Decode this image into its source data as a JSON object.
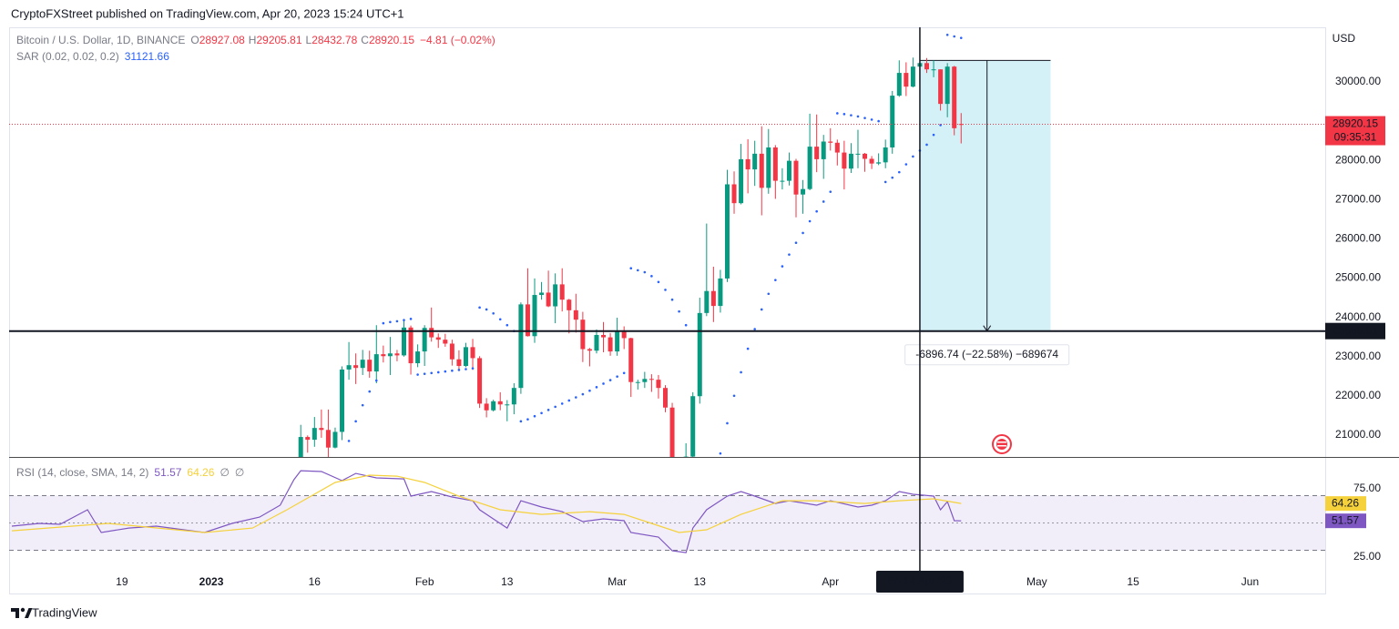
{
  "header": {
    "publisher": "CryptoFXStreet published on TradingView.com, Apr 20, 2023 15:24 UTC+1"
  },
  "footer": {
    "brand": "TradingView"
  },
  "chart_data": [
    {
      "type": "candlestick",
      "title": "Bitcoin / U.S. Dollar, 1D, BINANCE",
      "legend_keys": [
        "O",
        "H",
        "L",
        "C"
      ],
      "change": "−4.81 (−0.02%)",
      "currency": "USD",
      "up_color": "#089981",
      "down_color": "#f23645",
      "x": [
        "2023-01-13",
        "2023-01-14",
        "2023-01-15",
        "2023-01-16",
        "2023-01-17",
        "2023-01-18",
        "2023-01-19",
        "2023-01-20",
        "2023-01-21",
        "2023-01-22",
        "2023-01-23",
        "2023-01-24",
        "2023-01-25",
        "2023-01-26",
        "2023-01-27",
        "2023-01-28",
        "2023-01-29",
        "2023-01-30",
        "2023-01-31",
        "2023-02-01",
        "2023-02-02",
        "2023-02-03",
        "2023-02-04",
        "2023-02-05",
        "2023-02-06",
        "2023-02-07",
        "2023-02-08",
        "2023-02-09",
        "2023-02-10",
        "2023-02-11",
        "2023-02-12",
        "2023-02-13",
        "2023-02-14",
        "2023-02-15",
        "2023-02-16",
        "2023-02-17",
        "2023-02-18",
        "2023-02-19",
        "2023-02-20",
        "2023-02-21",
        "2023-02-22",
        "2023-02-23",
        "2023-02-24",
        "2023-02-25",
        "2023-02-26",
        "2023-02-27",
        "2023-02-28",
        "2023-03-01",
        "2023-03-02",
        "2023-03-03",
        "2023-03-04",
        "2023-03-05",
        "2023-03-06",
        "2023-03-07",
        "2023-03-08",
        "2023-03-09",
        "2023-03-10",
        "2023-03-11",
        "2023-03-12",
        "2023-03-13",
        "2023-03-14",
        "2023-03-15",
        "2023-03-16",
        "2023-03-17",
        "2023-03-18",
        "2023-03-19",
        "2023-03-20",
        "2023-03-21",
        "2023-03-22",
        "2023-03-23",
        "2023-03-24",
        "2023-03-25",
        "2023-03-26",
        "2023-03-27",
        "2023-03-28",
        "2023-03-29",
        "2023-03-30",
        "2023-03-31",
        "2023-04-01",
        "2023-04-02",
        "2023-04-03",
        "2023-04-04",
        "2023-04-05",
        "2023-04-06",
        "2023-04-07",
        "2023-04-08",
        "2023-04-09",
        "2023-04-10",
        "2023-04-11",
        "2023-04-12",
        "2023-04-13",
        "2023-04-14",
        "2023-04-15",
        "2023-04-16",
        "2023-04-17",
        "2023-04-18",
        "2023-04-19",
        "2023-04-20"
      ],
      "ohlc": [
        [
          18850,
          19970,
          18700,
          19930
        ],
        [
          19930,
          21260,
          19890,
          20950
        ],
        [
          20950,
          20990,
          20550,
          20880
        ],
        [
          20880,
          21460,
          20700,
          21180
        ],
        [
          21180,
          21650,
          20930,
          21130
        ],
        [
          21130,
          21650,
          20410,
          20680
        ],
        [
          20680,
          21190,
          20660,
          21080
        ],
        [
          21080,
          22750,
          20870,
          22670
        ],
        [
          22670,
          23370,
          22410,
          22780
        ],
        [
          22780,
          23080,
          22300,
          22710
        ],
        [
          22710,
          23170,
          22530,
          22920
        ],
        [
          22920,
          23150,
          22460,
          22620
        ],
        [
          22620,
          23800,
          22320,
          23060
        ],
        [
          23060,
          23280,
          22850,
          23010
        ],
        [
          23010,
          23500,
          22530,
          23080
        ],
        [
          23080,
          23170,
          22880,
          23030
        ],
        [
          23030,
          23960,
          23000,
          23740
        ],
        [
          23740,
          23790,
          22540,
          22830
        ],
        [
          22830,
          23310,
          22730,
          23130
        ],
        [
          23130,
          23800,
          22760,
          23730
        ],
        [
          23730,
          24250,
          23380,
          23490
        ],
        [
          23490,
          23590,
          23220,
          23430
        ],
        [
          23430,
          23580,
          23250,
          23330
        ],
        [
          23330,
          23430,
          22770,
          22930
        ],
        [
          22930,
          23160,
          22630,
          22760
        ],
        [
          22760,
          23350,
          22730,
          23240
        ],
        [
          23240,
          23450,
          22660,
          22960
        ],
        [
          22960,
          23010,
          21690,
          21800
        ],
        [
          21800,
          21940,
          21450,
          21630
        ],
        [
          21630,
          21900,
          21600,
          21860
        ],
        [
          21860,
          22090,
          21630,
          21780
        ],
        [
          21780,
          21890,
          21350,
          21780
        ],
        [
          21780,
          22320,
          21530,
          22200
        ],
        [
          22200,
          24380,
          22050,
          24330
        ],
        [
          24330,
          25250,
          23510,
          23520
        ],
        [
          23520,
          24990,
          23350,
          24570
        ],
        [
          24570,
          24900,
          24450,
          24630
        ],
        [
          24630,
          25190,
          24260,
          24280
        ],
        [
          24280,
          25120,
          23850,
          24840
        ],
        [
          24840,
          25250,
          24150,
          24450
        ],
        [
          24450,
          24470,
          23590,
          24180
        ],
        [
          24180,
          24600,
          23610,
          23940
        ],
        [
          23940,
          24140,
          22860,
          23190
        ],
        [
          23190,
          23220,
          22750,
          23150
        ],
        [
          23150,
          23690,
          23080,
          23550
        ],
        [
          23550,
          23880,
          23110,
          23490
        ],
        [
          23490,
          23600,
          23020,
          23130
        ],
        [
          23130,
          23990,
          23020,
          23630
        ],
        [
          23630,
          23770,
          23190,
          23470
        ],
        [
          23470,
          23480,
          21970,
          22350
        ],
        [
          22350,
          22410,
          22160,
          22350
        ],
        [
          22350,
          22610,
          22200,
          22430
        ],
        [
          22430,
          22550,
          22100,
          22410
        ],
        [
          22410,
          22530,
          21930,
          22200
        ],
        [
          22200,
          22270,
          21580,
          21700
        ],
        [
          21700,
          21820,
          19570,
          20360
        ],
        [
          20360,
          20370,
          19550,
          20150
        ],
        [
          20150,
          20790,
          19880,
          20450
        ],
        [
          20450,
          22090,
          20270,
          21990
        ],
        [
          21990,
          24500,
          21800,
          24110
        ],
        [
          24110,
          26390,
          24030,
          24670
        ],
        [
          24670,
          25290,
          23880,
          24290
        ],
        [
          24290,
          25210,
          24120,
          24990
        ],
        [
          24990,
          27760,
          24900,
          27390
        ],
        [
          27390,
          27720,
          26640,
          26910
        ],
        [
          26910,
          28420,
          26880,
          28030
        ],
        [
          28030,
          28540,
          27160,
          27770
        ],
        [
          27770,
          28500,
          27350,
          28170
        ],
        [
          28170,
          28870,
          26600,
          27300
        ],
        [
          27300,
          28800,
          27150,
          28330
        ],
        [
          28330,
          28390,
          27020,
          27480
        ],
        [
          27480,
          27800,
          27260,
          27480
        ],
        [
          27480,
          28200,
          27360,
          27990
        ],
        [
          27990,
          28040,
          26550,
          27130
        ],
        [
          27130,
          27500,
          26640,
          27270
        ],
        [
          27270,
          29190,
          27240,
          28350
        ],
        [
          28350,
          29170,
          27700,
          28030
        ],
        [
          28030,
          28650,
          27530,
          28480
        ],
        [
          28480,
          28820,
          28250,
          28450
        ],
        [
          28450,
          28530,
          27870,
          28200
        ],
        [
          28200,
          28500,
          27260,
          27790
        ],
        [
          27790,
          28440,
          27680,
          28170
        ],
        [
          28170,
          28780,
          27800,
          28170
        ],
        [
          28170,
          28190,
          27710,
          28040
        ],
        [
          28040,
          28110,
          27780,
          27920
        ],
        [
          27920,
          28180,
          27880,
          27950
        ],
        [
          27950,
          28530,
          27800,
          28330
        ],
        [
          28330,
          29770,
          28170,
          29650
        ],
        [
          29650,
          30550,
          29620,
          30230
        ],
        [
          30230,
          30500,
          29640,
          29880
        ],
        [
          29880,
          30620,
          29860,
          30390
        ],
        [
          30390,
          31000,
          29970,
          30480
        ],
        [
          30480,
          30610,
          30230,
          30320
        ],
        [
          30320,
          30550,
          30120,
          30320
        ],
        [
          30320,
          30320,
          29270,
          29440
        ],
        [
          29440,
          30480,
          29100,
          30390
        ],
        [
          30390,
          30410,
          28640,
          28820
        ],
        [
          28927.08,
          29205.81,
          28432.78,
          28920.15
        ]
      ],
      "indicator": {
        "name": "SAR (0.02, 0.02, 0.2)",
        "color": "#2962ff",
        "values": [
          17500,
          17900,
          18400,
          18900,
          19350,
          19750,
          20100,
          20400,
          20850,
          21350,
          21760,
          22110,
          22390,
          23850,
          23880,
          23900,
          23930,
          23960,
          22540,
          22560,
          22580,
          22600,
          22620,
          22640,
          22660,
          22680,
          22700,
          24250,
          24200,
          24100,
          23950,
          23800,
          23650,
          21350,
          21400,
          21480,
          21560,
          21640,
          21720,
          21800,
          21880,
          21960,
          22040,
          22130,
          22220,
          22310,
          22400,
          22490,
          22580,
          25250,
          25200,
          25150,
          25050,
          24900,
          24700,
          24450,
          24150,
          23800,
          19550,
          19620,
          19800,
          20150,
          20530,
          21300,
          22000,
          22600,
          23200,
          23700,
          24200,
          24600,
          24950,
          25300,
          25600,
          25900,
          26150,
          26450,
          26700,
          26950,
          27200,
          29200,
          29180,
          29150,
          29120,
          29080,
          29040,
          29000,
          27450,
          27560,
          27700,
          27900,
          28100,
          28250,
          28400,
          28650,
          28900,
          31200,
          31160,
          31121.66
        ]
      },
      "xlim": [
        "2022-12-03",
        "2023-06-11"
      ],
      "xticks": [
        {
          "value": "2022-12-19",
          "label": "19"
        },
        {
          "value": "2023-01-01",
          "label": "2023"
        },
        {
          "value": "2023-01-16",
          "label": "16"
        },
        {
          "value": "2023-02-01",
          "label": "Feb"
        },
        {
          "value": "2023-02-13",
          "label": "13"
        },
        {
          "value": "2023-03-01",
          "label": "Mar"
        },
        {
          "value": "2023-03-13",
          "label": "13"
        },
        {
          "value": "2023-04-01",
          "label": "Apr"
        },
        {
          "value": "2023-05-01",
          "label": "May"
        },
        {
          "value": "2023-05-15",
          "label": "15"
        },
        {
          "value": "2023-06-01",
          "label": "Jun"
        }
      ],
      "ylim": [
        20441,
        31392
      ],
      "yticks": [
        {
          "value": 21000,
          "label": "21000.00"
        },
        {
          "value": 22000,
          "label": "22000.00"
        },
        {
          "value": 23000,
          "label": "23000.00"
        },
        {
          "value": 24000,
          "label": "24000.00"
        },
        {
          "value": 25000,
          "label": "25000.00"
        },
        {
          "value": 26000,
          "label": "26000.00"
        },
        {
          "value": 27000,
          "label": "27000.00"
        },
        {
          "value": 28000,
          "label": "28000.00"
        },
        {
          "value": 29000,
          "label": "29000.00"
        },
        {
          "value": 30000,
          "label": "30000.00"
        }
      ],
      "last_price_time": "09:35:31",
      "hline": 23650.01,
      "measure": {
        "from": 30546.75,
        "to": 23650.01,
        "x_start": "2023-04-14",
        "x_end": "2023-05-03",
        "label": "-6896.74 (−22.58%) −689674"
      },
      "crosshair": {
        "x": "2023-04-14",
        "label": "Fri 14 Apr '23"
      }
    },
    {
      "type": "line",
      "title": "RSI (14, close, SMA, 14, 2)",
      "legend_extra": [
        "∅",
        "∅"
      ],
      "series": [
        {
          "color": "#7e57c2",
          "x": [
            "2022-12-03",
            "2022-12-07",
            "2022-12-10",
            "2022-12-14",
            "2022-12-16",
            "2022-12-20",
            "2022-12-24",
            "2022-12-28",
            "2022-12-31",
            "2023-01-04",
            "2023-01-08",
            "2023-01-11",
            "2023-01-13",
            "2023-01-14",
            "2023-01-17",
            "2023-01-20",
            "2023-01-22",
            "2023-01-25",
            "2023-01-29",
            "2023-01-30",
            "2023-02-02",
            "2023-02-05",
            "2023-02-08",
            "2023-02-09",
            "2023-02-13",
            "2023-02-15",
            "2023-02-18",
            "2023-02-21",
            "2023-02-24",
            "2023-02-27",
            "2023-03-02",
            "2023-03-03",
            "2023-03-07",
            "2023-03-09",
            "2023-03-11",
            "2023-03-12",
            "2023-03-14",
            "2023-03-17",
            "2023-03-19",
            "2023-03-21",
            "2023-03-24",
            "2023-03-26",
            "2023-03-30",
            "2023-04-01",
            "2023-04-05",
            "2023-04-07",
            "2023-04-09",
            "2023-04-11",
            "2023-04-13",
            "2023-04-16",
            "2023-04-17",
            "2023-04-18",
            "2023-04-19",
            "2023-04-20"
          ],
          "values": [
            47.7,
            49.7,
            49,
            59.7,
            43,
            46.3,
            47.7,
            45,
            43,
            49.7,
            54.3,
            63,
            81.7,
            88.3,
            87.7,
            81,
            86.3,
            83,
            82.3,
            69.7,
            73,
            69,
            66.3,
            59.7,
            46.3,
            66.3,
            61.7,
            58.3,
            51,
            53,
            51.7,
            43,
            39.7,
            29.7,
            28.3,
            46.3,
            59.7,
            69.7,
            73,
            69.7,
            64.3,
            66.3,
            63,
            66.3,
            61.7,
            63,
            66.3,
            73,
            71,
            69.7,
            59.7,
            65.7,
            51.7,
            51.57
          ]
        },
        {
          "color": "#f5d13b",
          "x": [
            "2022-12-03",
            "2022-12-17",
            "2022-12-31",
            "2023-01-07",
            "2023-01-12",
            "2023-01-19",
            "2023-01-24",
            "2023-01-28",
            "2023-02-01",
            "2023-02-06",
            "2023-02-12",
            "2023-02-18",
            "2023-02-25",
            "2023-03-02",
            "2023-03-06",
            "2023-03-10",
            "2023-03-14",
            "2023-03-19",
            "2023-03-25",
            "2023-03-30",
            "2023-04-06",
            "2023-04-11",
            "2023-04-16",
            "2023-04-20"
          ],
          "values": [
            44.3,
            49.7,
            43,
            46.3,
            59.7,
            79.7,
            85,
            84.3,
            79.7,
            69.7,
            59.7,
            56.3,
            58.3,
            56.3,
            49.7,
            43,
            45,
            56.3,
            66.3,
            66.3,
            64.3,
            66.3,
            67.7,
            64.26
          ]
        }
      ],
      "ylim": [
        15,
        97.7
      ],
      "yticks": [
        {
          "value": 75,
          "label": "75.00"
        },
        {
          "value": 25,
          "label": "25.00"
        }
      ],
      "bands": [
        30,
        70
      ],
      "midline": 50,
      "band_color": "#7e57c2"
    }
  ]
}
